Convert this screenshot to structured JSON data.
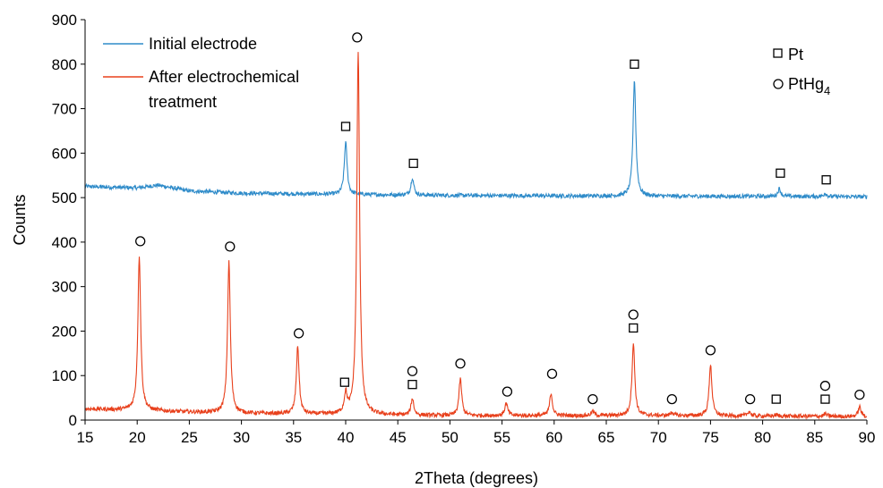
{
  "chart_data": {
    "type": "line",
    "xlabel": "2Theta (degrees)",
    "ylabel": "Counts",
    "xlim": [
      15,
      90
    ],
    "ylim": [
      0,
      900
    ],
    "xticks": [
      15,
      20,
      25,
      30,
      35,
      40,
      45,
      50,
      55,
      60,
      65,
      70,
      75,
      80,
      85,
      90
    ],
    "yticks": [
      0,
      100,
      200,
      300,
      400,
      500,
      600,
      700,
      800,
      900
    ],
    "grid": false,
    "series": [
      {
        "name": "Initial electrode",
        "color": "#2e8bc9",
        "baseline": [
          [
            15,
            525
          ],
          [
            20,
            522
          ],
          [
            22,
            528
          ],
          [
            25,
            515
          ],
          [
            30,
            510
          ],
          [
            40,
            507
          ],
          [
            50,
            505
          ],
          [
            60,
            504
          ],
          [
            70,
            503
          ],
          [
            80,
            503
          ],
          [
            90,
            502
          ]
        ],
        "peaks": [
          {
            "x": 40.0,
            "y": 625
          },
          {
            "x": 46.4,
            "y": 545
          },
          {
            "x": 67.7,
            "y": 765
          },
          {
            "x": 81.6,
            "y": 520
          },
          {
            "x": 86.0,
            "y": 510
          }
        ]
      },
      {
        "name": "After electrochemical treatment",
        "legend_lines": [
          "After electrochemical",
          "treatment"
        ],
        "color": "#e8401c",
        "baseline": [
          [
            15,
            25
          ],
          [
            20,
            22
          ],
          [
            25,
            18
          ],
          [
            30,
            15
          ],
          [
            40,
            12
          ],
          [
            50,
            10
          ],
          [
            60,
            10
          ],
          [
            70,
            10
          ],
          [
            80,
            9
          ],
          [
            90,
            8
          ]
        ],
        "peaks": [
          {
            "x": 20.2,
            "y": 370
          },
          {
            "x": 28.8,
            "y": 355
          },
          {
            "x": 35.4,
            "y": 165
          },
          {
            "x": 40.0,
            "y": 55
          },
          {
            "x": 41.2,
            "y": 830
          },
          {
            "x": 46.4,
            "y": 48
          },
          {
            "x": 51.0,
            "y": 92
          },
          {
            "x": 55.4,
            "y": 38
          },
          {
            "x": 59.7,
            "y": 60
          },
          {
            "x": 63.7,
            "y": 20
          },
          {
            "x": 67.6,
            "y": 172
          },
          {
            "x": 71.3,
            "y": 18
          },
          {
            "x": 75.0,
            "y": 125
          },
          {
            "x": 78.7,
            "y": 20
          },
          {
            "x": 81.3,
            "y": 12
          },
          {
            "x": 86.0,
            "y": 14
          },
          {
            "x": 89.3,
            "y": 30
          }
        ]
      }
    ],
    "markers": [
      {
        "shape": "square",
        "x": 40.0,
        "y": 660
      },
      {
        "shape": "square",
        "x": 46.5,
        "y": 577
      },
      {
        "shape": "square",
        "x": 67.7,
        "y": 800
      },
      {
        "shape": "square",
        "x": 81.7,
        "y": 555
      },
      {
        "shape": "square",
        "x": 86.1,
        "y": 540
      },
      {
        "shape": "circle",
        "x": 41.1,
        "y": 860
      },
      {
        "shape": "circle",
        "x": 20.3,
        "y": 402
      },
      {
        "shape": "circle",
        "x": 28.9,
        "y": 390
      },
      {
        "shape": "circle",
        "x": 35.5,
        "y": 195
      },
      {
        "shape": "square",
        "x": 39.9,
        "y": 85
      },
      {
        "shape": "circle",
        "x": 46.4,
        "y": 110
      },
      {
        "shape": "square",
        "x": 46.4,
        "y": 80
      },
      {
        "shape": "circle",
        "x": 51.0,
        "y": 127
      },
      {
        "shape": "circle",
        "x": 55.5,
        "y": 64
      },
      {
        "shape": "circle",
        "x": 59.8,
        "y": 104
      },
      {
        "shape": "circle",
        "x": 63.7,
        "y": 47
      },
      {
        "shape": "circle",
        "x": 67.6,
        "y": 237
      },
      {
        "shape": "square",
        "x": 67.6,
        "y": 207
      },
      {
        "shape": "circle",
        "x": 71.3,
        "y": 47
      },
      {
        "shape": "circle",
        "x": 75.0,
        "y": 157
      },
      {
        "shape": "circle",
        "x": 78.8,
        "y": 47
      },
      {
        "shape": "square",
        "x": 81.3,
        "y": 47
      },
      {
        "shape": "circle",
        "x": 86.0,
        "y": 77
      },
      {
        "shape": "square",
        "x": 86.0,
        "y": 47
      },
      {
        "shape": "circle",
        "x": 89.3,
        "y": 57
      }
    ],
    "marker_legend": [
      {
        "shape": "square",
        "label": "Pt"
      },
      {
        "shape": "circle",
        "label": "PtHg",
        "subscript": "4"
      }
    ]
  }
}
